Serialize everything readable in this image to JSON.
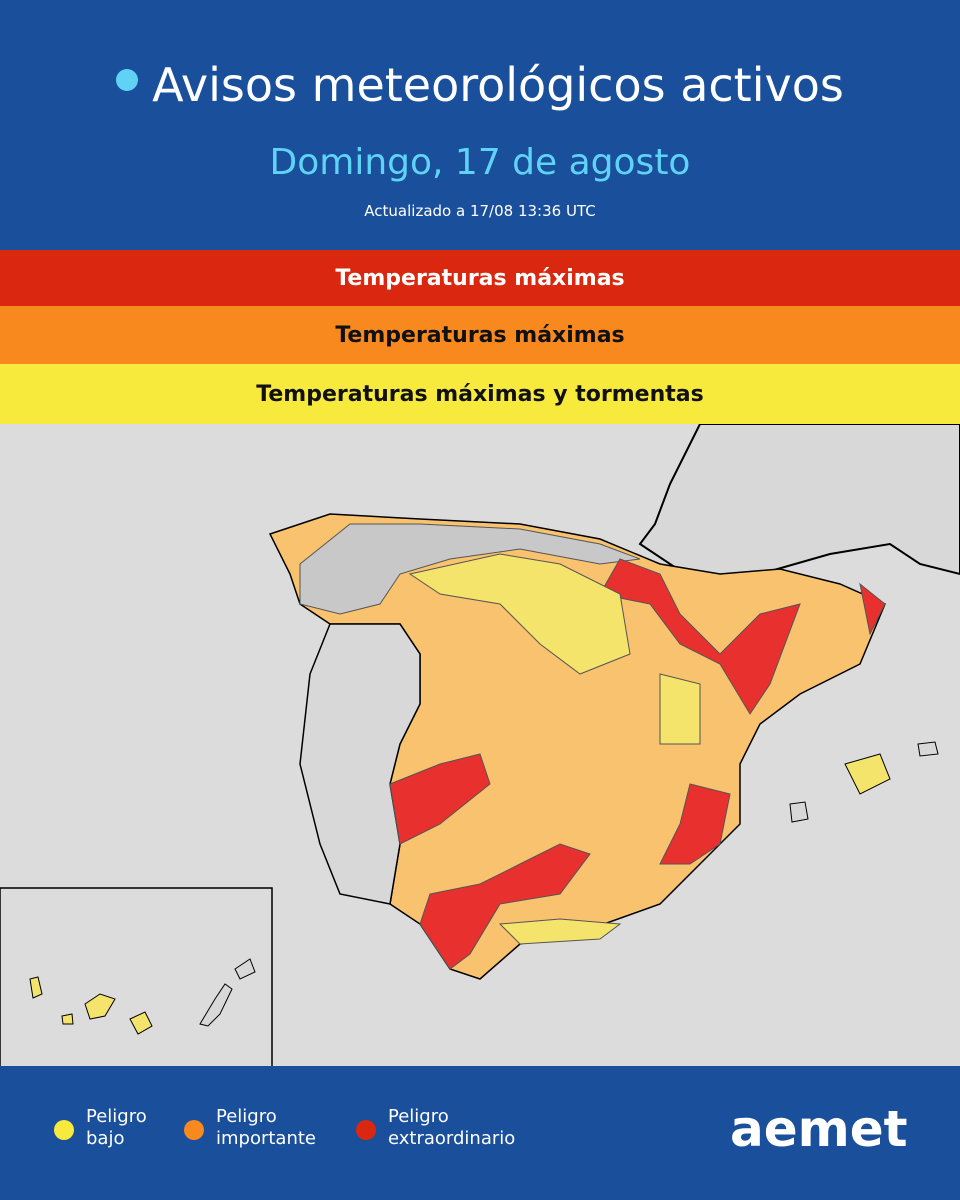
{
  "header": {
    "title": "Avisos meteorológicos activos",
    "date": "Domingo, 17 de agosto",
    "updated": "Actualizado a 17/08  13:36 UTC"
  },
  "bands": [
    {
      "text": "Temperaturas máximas",
      "level": "red"
    },
    {
      "text": "Temperaturas máximas",
      "level": "orange"
    },
    {
      "text": "Temperaturas máximas y tormentas",
      "level": "yellow"
    }
  ],
  "legend": [
    {
      "lines": [
        "Peligro",
        "bajo"
      ],
      "color": "#f7ea3c"
    },
    {
      "lines": [
        "Peligro",
        "importante"
      ],
      "color": "#f7891f"
    },
    {
      "lines": [
        "Peligro",
        "extraordinario"
      ],
      "color": "#d9280f"
    }
  ],
  "logo": "aemet"
}
